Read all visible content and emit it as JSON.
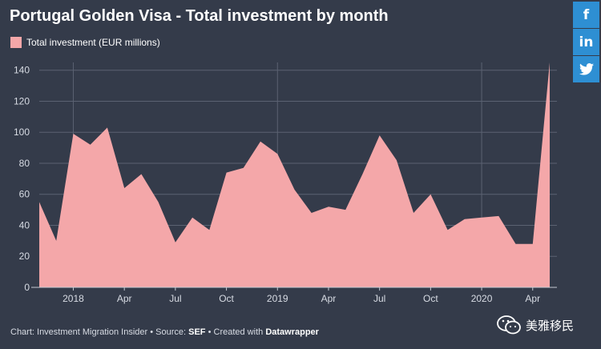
{
  "title": "Portugal Golden Visa - Total investment by month",
  "colors": {
    "background": "#343b4a",
    "area": "#f4a7a9",
    "grid": "#5b6272",
    "axis_text": "#d8dce4",
    "social": "#2e8fd3"
  },
  "social": [
    {
      "label": "f",
      "icon": "facebook-icon"
    },
    {
      "label": "in",
      "icon": "linkedin-icon"
    },
    {
      "label": "",
      "icon": "twitter-icon"
    }
  ],
  "footer": {
    "chart_by": "Chart: Investment Migration Insider • Source: ",
    "source": "SEF",
    "created_with": " • Created with ",
    "tool": "Datawrapper"
  },
  "watermark": {
    "text": "美雅移民",
    "icon": "wechat-icon"
  },
  "chart_data": {
    "type": "area",
    "title": "Portugal Golden Visa - Total investment by month",
    "legend": [
      "Total investment (EUR millions)"
    ],
    "legend_position": "top-left",
    "grid": true,
    "ylim": [
      0,
      145
    ],
    "yticks": [
      0,
      20,
      40,
      60,
      80,
      100,
      120,
      140
    ],
    "x_tick_labels": [
      {
        "index": 2,
        "label": "2018"
      },
      {
        "index": 5,
        "label": "Apr"
      },
      {
        "index": 8,
        "label": "Jul"
      },
      {
        "index": 11,
        "label": "Oct"
      },
      {
        "index": 14,
        "label": "2019"
      },
      {
        "index": 17,
        "label": "Apr"
      },
      {
        "index": 20,
        "label": "Jul"
      },
      {
        "index": 23,
        "label": "Oct"
      },
      {
        "index": 26,
        "label": "2020"
      },
      {
        "index": 29,
        "label": "Apr"
      }
    ],
    "series": [
      {
        "name": "Total investment (EUR millions)",
        "values": [
          55,
          30,
          99,
          92,
          103,
          64,
          73,
          55,
          29,
          45,
          37,
          74,
          77,
          94,
          86,
          63,
          48,
          52,
          50,
          73,
          98,
          82,
          48,
          60,
          37,
          44,
          45,
          46,
          28,
          28,
          145
        ]
      }
    ]
  }
}
